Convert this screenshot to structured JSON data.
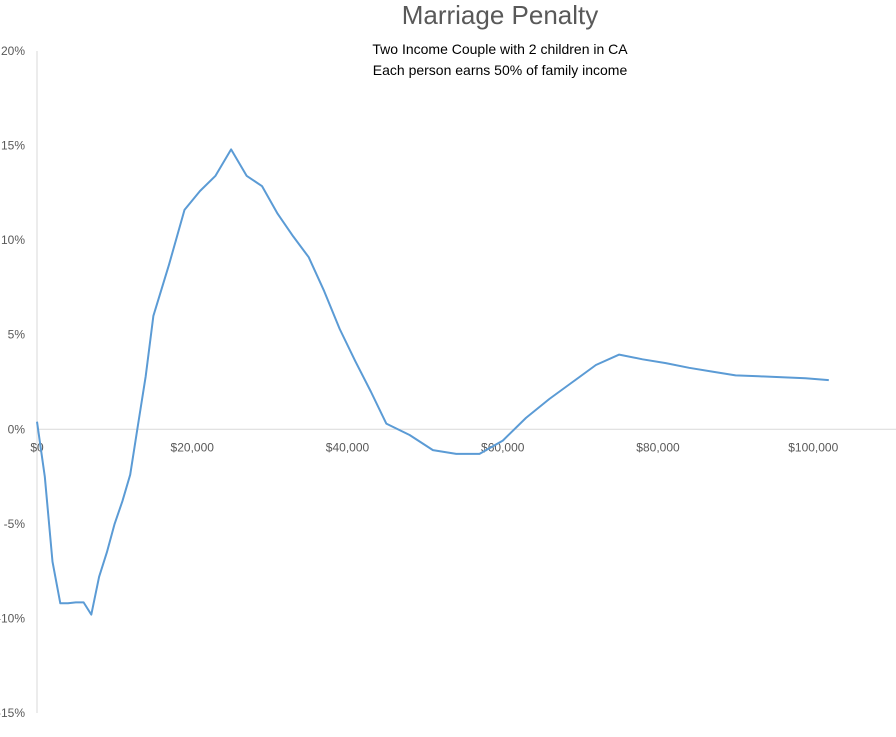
{
  "chart_data": {
    "type": "line",
    "title": "Marriage Penalty",
    "subtitle_lines": [
      "Two Income Couple with 2 children in CA",
      "Each person earns 50% of family income"
    ],
    "xlabel": "",
    "ylabel": "",
    "xlim": [
      0,
      115000
    ],
    "ylim": [
      -15,
      20
    ],
    "x_ticks": [
      0,
      20000,
      40000,
      60000,
      80000,
      100000
    ],
    "x_tick_labels": [
      "$0",
      "$20,000",
      "$40,000",
      "$60,000",
      "$80,000",
      "$100,000"
    ],
    "y_ticks": [
      20,
      15,
      10,
      5,
      0,
      -5,
      -10,
      -15
    ],
    "y_tick_labels": [
      "20%",
      "15%",
      "10%",
      "5%",
      "0%",
      "-5%",
      "-10%",
      "-15%"
    ],
    "grid": false,
    "line_color": "#5b9bd5",
    "axis_color": "#d9d9d9",
    "x": [
      0,
      1000,
      2000,
      3000,
      4000,
      5000,
      6000,
      7000,
      8000,
      9000,
      10000,
      11000,
      12000,
      13000,
      14000,
      15000,
      17000,
      19000,
      21000,
      23000,
      25000,
      27000,
      29000,
      31000,
      33000,
      35000,
      37000,
      39000,
      41000,
      43000,
      45000,
      48000,
      51000,
      54000,
      57000,
      60000,
      63000,
      66000,
      69000,
      72000,
      75000,
      78000,
      81000,
      84000,
      87000,
      90000,
      93000,
      96000,
      99000,
      102000
    ],
    "values": [
      0.4,
      -2.5,
      -7.0,
      -9.2,
      -9.2,
      -9.15,
      -9.15,
      -9.8,
      -7.8,
      -6.5,
      -5.0,
      -3.8,
      -2.4,
      0.2,
      2.8,
      6.0,
      8.7,
      11.6,
      12.6,
      13.4,
      14.8,
      13.4,
      12.85,
      11.4,
      10.2,
      9.1,
      7.3,
      5.3,
      3.6,
      2.0,
      0.3,
      -0.3,
      -1.1,
      -1.3,
      -1.3,
      -0.6,
      0.6,
      1.6,
      2.5,
      3.4,
      3.95,
      3.7,
      3.5,
      3.25,
      3.05,
      2.85,
      2.8,
      2.75,
      2.7,
      2.6
    ]
  }
}
